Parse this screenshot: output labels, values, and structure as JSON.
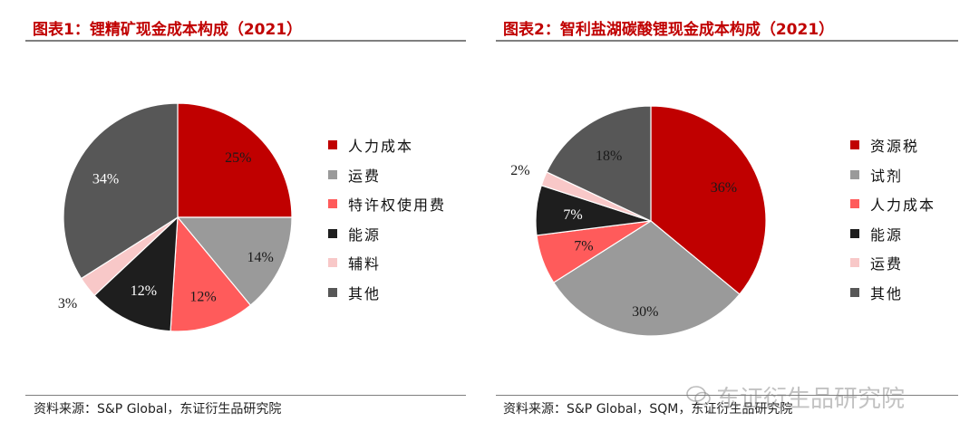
{
  "charts": [
    {
      "title": "图表1：锂精矿现金成本构成（2021）",
      "source": "资料来源：S&P Global，东证衍生品研究院",
      "chart_data": {
        "type": "pie",
        "labels": [
          "人力成本",
          "运费",
          "特许权使用费",
          "能源",
          "辅料",
          "其他"
        ],
        "values": [
          25,
          14,
          12,
          12,
          3,
          34
        ],
        "data_labels": [
          "25%",
          "14%",
          "12%",
          "12%",
          "3%",
          "34%"
        ],
        "colors": [
          "#c00000",
          "#9a9a9a",
          "#ff5b5b",
          "#1e1e1e",
          "#f8c8c8",
          "#575757"
        ],
        "label_colors": [
          "#1a1a1a",
          "#1a1a1a",
          "#1a1a1a",
          "#ffffff",
          "#1a1a1a",
          "#ffffff"
        ],
        "start_angle_deg": 0,
        "legend_position": "right"
      }
    },
    {
      "title": "图表2：智利盐湖碳酸锂现金成本构成（2021）",
      "source": "资料来源：S&P Global，SQM，东证衍生品研究院",
      "chart_data": {
        "type": "pie",
        "labels": [
          "资源税",
          "试剂",
          "人力成本",
          "能源",
          "运费",
          "其他"
        ],
        "values": [
          36,
          30,
          7,
          7,
          2,
          18
        ],
        "data_labels": [
          "36%",
          "30%",
          "7%",
          "7%",
          "2%",
          "18%"
        ],
        "colors": [
          "#c00000",
          "#9a9a9a",
          "#ff5b5b",
          "#1e1e1e",
          "#f8c8c8",
          "#575757"
        ],
        "label_colors": [
          "#1a1a1a",
          "#1a1a1a",
          "#1a1a1a",
          "#ffffff",
          "#1a1a1a",
          "#1a1a1a"
        ],
        "start_angle_deg": 0,
        "legend_position": "right"
      }
    }
  ],
  "watermark": "东证衍生品研究院",
  "watermark_icon": "wechat-icon"
}
